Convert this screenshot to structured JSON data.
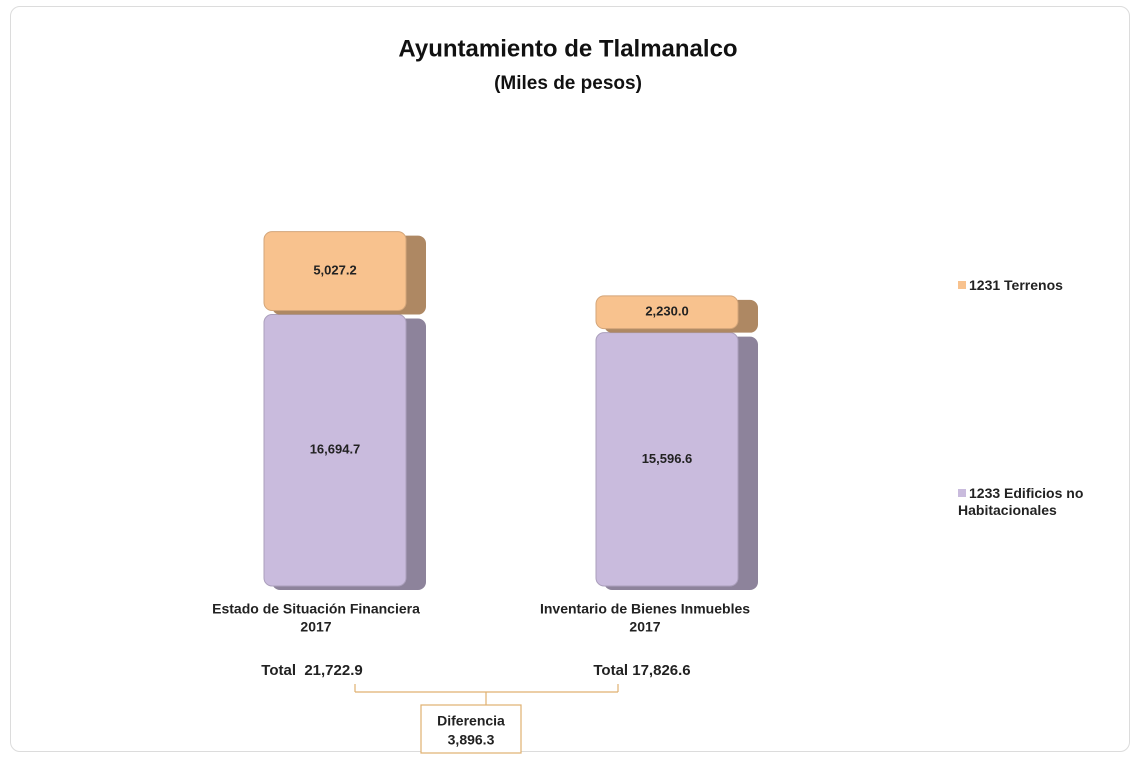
{
  "chart_data": {
    "type": "stacked_bar",
    "title": "Ayuntamiento de Tlalmanalco",
    "subtitle": "(Miles de pesos)",
    "categories": [
      [
        "Estado de Situación Financiera",
        "2017"
      ],
      [
        "Inventario de Bienes Inmuebles",
        "2017"
      ]
    ],
    "series": [
      {
        "name": "1233 Edificios no Habitacionales",
        "color": "#c9bbdd",
        "values": [
          16694.7,
          15596.6
        ],
        "value_labels": [
          "16,694.7",
          "15,596.6"
        ]
      },
      {
        "name": "1231 Terrenos",
        "color": "#f8c28e",
        "values": [
          5027.2,
          2230.0
        ],
        "value_labels": [
          "5,027.2",
          "2,230.0"
        ]
      }
    ],
    "ylim": [
      0,
      22000
    ],
    "totals": [
      "Total  21,722.9",
      "Total 17,826.6"
    ],
    "difference_label": "Diferencia",
    "difference_value": "3,896.3"
  }
}
